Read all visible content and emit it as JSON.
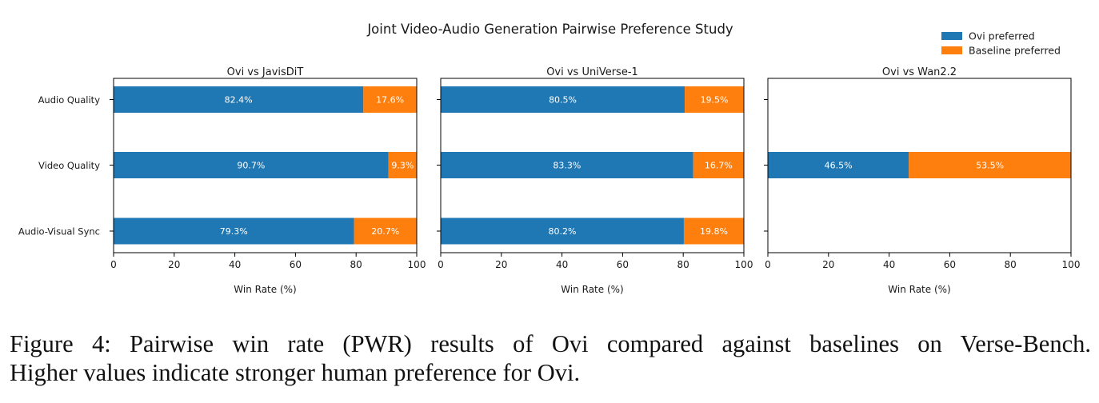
{
  "chart_data": {
    "type": "bar",
    "orientation": "horizontal-stacked",
    "title": "Joint Video-Audio Generation Pairwise Preference Study",
    "legend": {
      "position": "top-right",
      "entries": [
        {
          "label": "Ovi preferred",
          "color": "#1f77b4"
        },
        {
          "label": "Baseline preferred",
          "color": "#ff7f0e"
        }
      ]
    },
    "categories": [
      "Audio Quality",
      "Video Quality",
      "Audio-Visual Sync"
    ],
    "xlabel": "Win Rate (%)",
    "xlim": [
      0,
      100
    ],
    "xticks": [
      "0",
      "20",
      "40",
      "60",
      "80",
      "100"
    ],
    "panels": [
      {
        "title": "Ovi vs JavisDiT",
        "series": [
          {
            "name": "Ovi preferred",
            "values": [
              82.4,
              90.7,
              79.3
            ],
            "labels": [
              "82.4%",
              "90.7%",
              "79.3%"
            ]
          },
          {
            "name": "Baseline preferred",
            "values": [
              17.6,
              9.3,
              20.7
            ],
            "labels": [
              "17.6%",
              "9.3%",
              "20.7%"
            ]
          }
        ]
      },
      {
        "title": "Ovi vs UniVerse-1",
        "series": [
          {
            "name": "Ovi preferred",
            "values": [
              80.5,
              83.3,
              80.2
            ],
            "labels": [
              "80.5%",
              "83.3%",
              "80.2%"
            ]
          },
          {
            "name": "Baseline preferred",
            "values": [
              19.5,
              16.7,
              19.8
            ],
            "labels": [
              "19.5%",
              "16.7%",
              "19.8%"
            ]
          }
        ]
      },
      {
        "title": "Ovi vs Wan2.2",
        "series": [
          {
            "name": "Ovi preferred",
            "values": [
              null,
              46.5,
              null
            ],
            "labels": [
              null,
              "46.5%",
              null
            ]
          },
          {
            "name": "Baseline preferred",
            "values": [
              null,
              53.5,
              null
            ],
            "labels": [
              null,
              "53.5%",
              null
            ]
          }
        ]
      }
    ]
  },
  "caption": {
    "line1": "Figure 4: Pairwise win rate (PWR) results of Ovi compared against baselines on Verse-Bench.",
    "line2": "Higher values indicate stronger human preference for Ovi."
  }
}
